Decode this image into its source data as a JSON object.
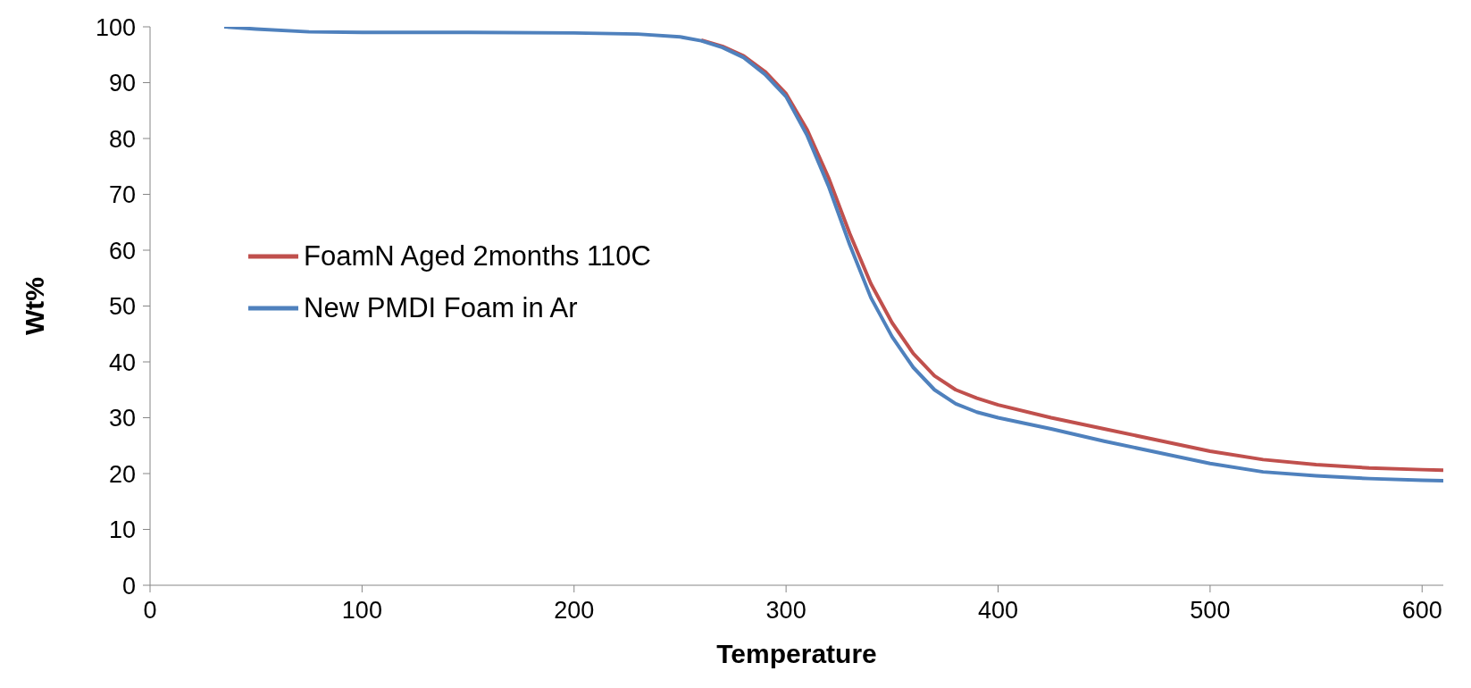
{
  "chart_data": {
    "type": "line",
    "xlabel": "Temperature",
    "ylabel": "Wt%",
    "xlim": [
      0,
      610
    ],
    "xticks": [
      0,
      100,
      200,
      300,
      400,
      500,
      600
    ],
    "ylim": [
      0,
      100
    ],
    "yticks": [
      0,
      10,
      20,
      30,
      40,
      50,
      60,
      70,
      80,
      90,
      100
    ],
    "grid": false,
    "legend": "left",
    "marker": "none",
    "line_style": "solid",
    "x": [
      35,
      50,
      75,
      100,
      150,
      200,
      230,
      250,
      260,
      270,
      280,
      290,
      300,
      310,
      320,
      330,
      340,
      350,
      360,
      370,
      380,
      390,
      400,
      425,
      450,
      475,
      500,
      525,
      550,
      575,
      600,
      610
    ],
    "series": [
      {
        "name": "FoamN Aged 2months 110C",
        "color": "#c0504d",
        "values": [
          null,
          null,
          null,
          null,
          null,
          null,
          null,
          null,
          97.6,
          96.5,
          94.8,
          92,
          88,
          81.5,
          73,
          63,
          54,
          47,
          41.5,
          37.5,
          35,
          33.5,
          32.3,
          30,
          28,
          26,
          24,
          22.5,
          21.6,
          21,
          20.7,
          20.6
        ]
      },
      {
        "name": "New PMDI Foam in Ar",
        "color": "#4f81bd",
        "values": [
          100,
          99.6,
          99.1,
          99,
          99,
          98.9,
          98.7,
          98.2,
          97.5,
          96.3,
          94.5,
          91.5,
          87.5,
          80.5,
          71.5,
          61,
          51.5,
          44.5,
          39,
          35,
          32.5,
          31,
          30,
          28,
          25.8,
          23.8,
          21.8,
          20.3,
          19.6,
          19.1,
          18.8,
          18.7
        ]
      }
    ]
  }
}
